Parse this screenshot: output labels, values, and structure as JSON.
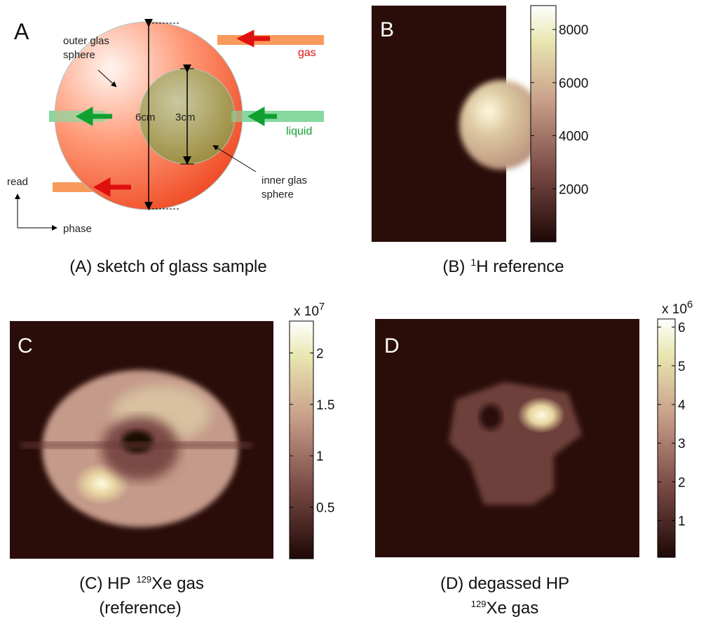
{
  "panel_a": {
    "letter": "A",
    "outer_sphere": [
      "outer glas",
      "sphere"
    ],
    "gas": "gas",
    "liquid": "liquid",
    "outer_diameter": "6cm",
    "inner_diameter": "3cm",
    "inner_sphere": [
      "inner glas",
      "sphere"
    ],
    "read": "read",
    "phase": "phase",
    "caption": "(A) sketch of glass sample"
  },
  "panel_b": {
    "letter": "B",
    "colorbar": {
      "clim": [
        0,
        8900
      ],
      "ticks": [
        2000,
        4000,
        6000,
        8000
      ]
    },
    "caption": {
      "label": "(B)",
      "sup": "1",
      "text": "H reference"
    }
  },
  "panel_c": {
    "letter": "C",
    "colorbar": {
      "clim": [
        0,
        2.31
      ],
      "ticks": [
        0.5,
        1,
        1.5,
        2
      ],
      "multiplier": "x 10",
      "power": "7"
    },
    "caption": {
      "line1": "(C) HP",
      "sup": "129",
      "text": "Xe  gas",
      "line2": "(reference)"
    }
  },
  "panel_d": {
    "letter": "D",
    "colorbar": {
      "clim": [
        0.05,
        6.21
      ],
      "ticks": [
        1,
        2,
        3,
        4,
        5,
        6
      ],
      "multiplier": "x 10",
      "power": "6"
    },
    "caption": {
      "line1": "(D) degassed HP",
      "sup": "129",
      "text": "Xe gas"
    }
  }
}
